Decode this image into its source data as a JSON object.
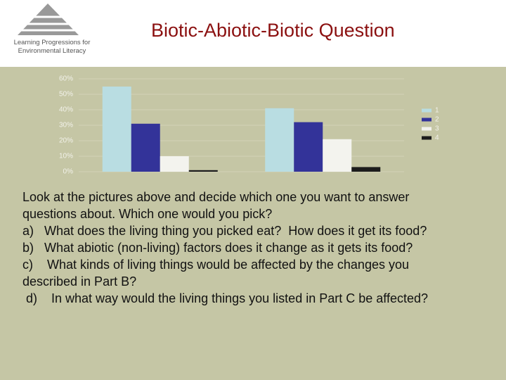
{
  "header": {
    "logo_lines": [
      "Learning Progressions for",
      "Environmental Literacy"
    ],
    "title": "Biotic-Abiotic-Biotic Question"
  },
  "chart_data": {
    "type": "bar",
    "categories": [
      null,
      null
    ],
    "series": [
      {
        "name": "1",
        "color": "#b9dde2",
        "values": [
          55,
          41
        ]
      },
      {
        "name": "2",
        "color": "#333399",
        "values": [
          31,
          32
        ]
      },
      {
        "name": "3",
        "color": "#f3f3ee",
        "values": [
          10,
          21
        ]
      },
      {
        "name": "4",
        "color": "#1c1c1c",
        "values": [
          1,
          3
        ]
      }
    ],
    "ylim": [
      0,
      60
    ],
    "yticks": [
      {
        "value": 0,
        "label": "0%"
      },
      {
        "value": 10,
        "label": "10%"
      },
      {
        "value": 20,
        "label": "20%"
      },
      {
        "value": 30,
        "label": "30%"
      },
      {
        "value": 40,
        "label": "40%"
      },
      {
        "value": 50,
        "label": "50%"
      },
      {
        "value": 60,
        "label": "60%"
      }
    ],
    "grid": true,
    "legend": "right"
  },
  "body": {
    "lines": [
      "Look at the pictures above and decide which one you want to answer",
      "questions about. Which one would you pick?",
      "a)   What does the living thing you picked eat?  How does it get its food?",
      "b)   What abiotic (non-living) factors does it change as it gets its food?",
      "c)    What kinds of living things would be affected by the changes you",
      "described in Part B?",
      " d)    In what way would the living things you listed in Part C be affected?"
    ]
  }
}
